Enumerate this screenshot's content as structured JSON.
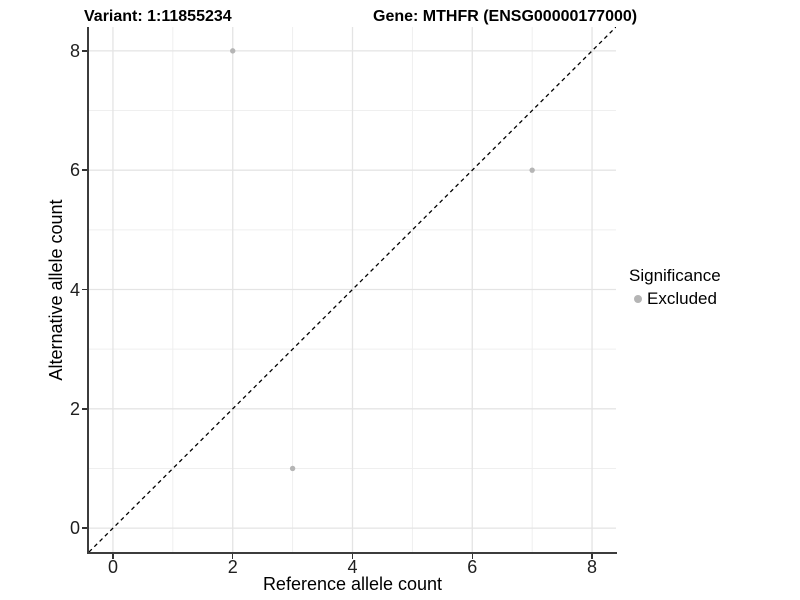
{
  "chart_data": {
    "type": "scatter",
    "titles": {
      "left": "Variant: 1:11855234",
      "right": "Gene: MTHFR (ENSG00000177000)"
    },
    "xlabel": "Reference allele count",
    "ylabel": "Alternative allele count",
    "xlim": [
      -0.4,
      8.4
    ],
    "ylim": [
      -0.4,
      8.4
    ],
    "xticks": [
      0,
      2,
      4,
      6,
      8
    ],
    "yticks": [
      0,
      2,
      4,
      6,
      8
    ],
    "xminor": [
      1,
      3,
      5,
      7
    ],
    "yminor": [
      1,
      3,
      5,
      7
    ],
    "grid": "major and minor gridlines on white panel",
    "identity_line": {
      "slope": 1,
      "intercept": 0,
      "linetype": "dashed",
      "color": "#000000"
    },
    "series": [
      {
        "name": "Excluded",
        "color": "#b5b5b5",
        "point_radius": 2.7,
        "points": [
          [
            2,
            8
          ],
          [
            7,
            6
          ],
          [
            3,
            1
          ]
        ]
      }
    ],
    "legend": {
      "title": "Significance",
      "position": "right",
      "items": [
        {
          "label": "Excluded",
          "color": "#b5b5b5"
        }
      ]
    },
    "style": {
      "grid_major_color": "#e4e4e4",
      "grid_minor_color": "#efefef",
      "axis_line_color": "#3c3c3c"
    }
  }
}
